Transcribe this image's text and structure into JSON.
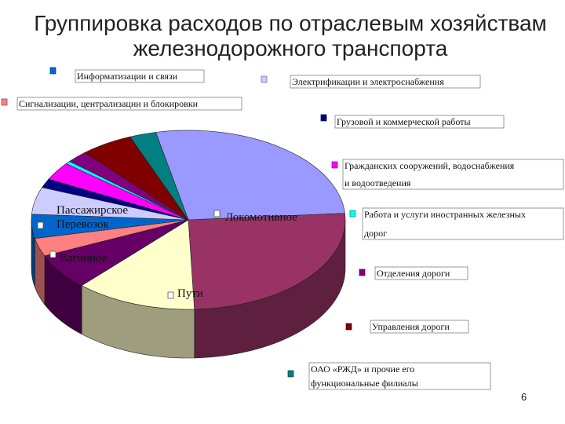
{
  "slide": {
    "title": "Группировка расходов по отраслевым хозяйствам железнодорожного транспорта",
    "page_number": "6"
  },
  "chart_data": {
    "type": "pie",
    "title": "Группировка расходов по отраслевым хозяйствам железнодорожного транспорта",
    "three_d": true,
    "legend_position": "labels scattered around pie with small colored markers",
    "slices": [
      {
        "name": "Локомотивное",
        "value": 25.0,
        "color": "#9999ff"
      },
      {
        "name": "Пути",
        "value": 23.5,
        "color": "#993366"
      },
      {
        "name": "Вагонное",
        "value": 11.5,
        "color": "#ffffcc"
      },
      {
        "name": "Пассажирское Перевозок",
        "value": 6.0,
        "color": "#660066"
      },
      {
        "name": "Сигнализации, централизации и блокировки",
        "value": 3.0,
        "color": "#ff8080"
      },
      {
        "name": "Информатизации и связи",
        "value": 4.0,
        "color": "#0066cc"
      },
      {
        "name": "Электрификации и электроснабжения",
        "value": 4.5,
        "color": "#ccccff"
      },
      {
        "name": "Грузовой и коммерческой работы",
        "value": 1.5,
        "color": "#000080"
      },
      {
        "name": "Гражданских сооружений, водоснабжения и водоотведения",
        "value": 3.0,
        "color": "#ff00ff"
      },
      {
        "name": "Работа и услуги иностранных железных дорог",
        "value": 0.5,
        "color": "#00ffff"
      },
      {
        "name": "Отделения дороги",
        "value": 2.0,
        "color": "#800080"
      },
      {
        "name": "Управления дороги",
        "value": 5.0,
        "color": "#800000"
      },
      {
        "name": "ОАО «РЖД» и прочие его функциональные филиалы",
        "value": 2.5,
        "color": "#008080"
      }
    ]
  }
}
